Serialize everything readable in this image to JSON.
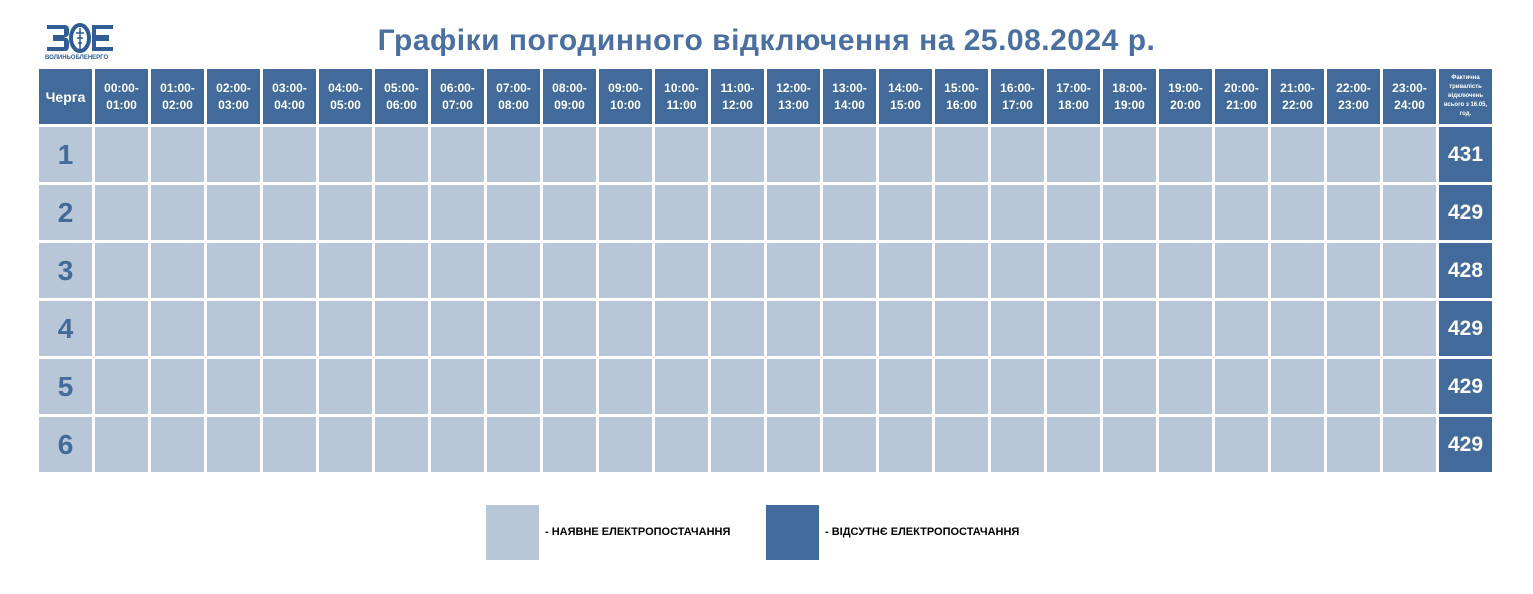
{
  "logo": {
    "text": "ВОЛИНЬОБЛЕНЕРГО"
  },
  "title": "Графіки погодинного відключення на 25.08.2024 р.",
  "table": {
    "queue_header": "Черга",
    "hours": [
      [
        "00:00-",
        "01:00"
      ],
      [
        "01:00-",
        "02:00"
      ],
      [
        "02:00-",
        "03:00"
      ],
      [
        "03:00-",
        "04:00"
      ],
      [
        "04:00-",
        "05:00"
      ],
      [
        "05:00-",
        "06:00"
      ],
      [
        "06:00-",
        "07:00"
      ],
      [
        "07:00-",
        "08:00"
      ],
      [
        "08:00-",
        "09:00"
      ],
      [
        "09:00-",
        "10:00"
      ],
      [
        "10:00-",
        "11:00"
      ],
      [
        "11:00-",
        "12:00"
      ],
      [
        "12:00-",
        "13:00"
      ],
      [
        "13:00-",
        "14:00"
      ],
      [
        "14:00-",
        "15:00"
      ],
      [
        "15:00-",
        "16:00"
      ],
      [
        "16:00-",
        "17:00"
      ],
      [
        "17:00-",
        "18:00"
      ],
      [
        "18:00-",
        "19:00"
      ],
      [
        "19:00-",
        "20:00"
      ],
      [
        "20:00-",
        "21:00"
      ],
      [
        "21:00-",
        "22:00"
      ],
      [
        "22:00-",
        "23:00"
      ],
      [
        "23:00-",
        "24:00"
      ]
    ],
    "total_header": [
      "Фактична",
      "тривалість",
      "відключень",
      "всього з 16.05,",
      "год."
    ],
    "rows": [
      {
        "queue": "1",
        "total": "431",
        "off_hours": []
      },
      {
        "queue": "2",
        "total": "429",
        "off_hours": []
      },
      {
        "queue": "3",
        "total": "428",
        "off_hours": []
      },
      {
        "queue": "4",
        "total": "429",
        "off_hours": []
      },
      {
        "queue": "5",
        "total": "429",
        "off_hours": []
      },
      {
        "queue": "6",
        "total": "429",
        "off_hours": []
      }
    ]
  },
  "legend": {
    "on_label": "- НАЯВНЕ ЕЛЕКТРОПОСТАЧАННЯ",
    "off_label": "- ВІДСУТНЄ ЕЛЕКТРОПОСТАЧАННЯ"
  },
  "colors": {
    "power_on": "#b8c7d7",
    "power_off": "#426a9a",
    "title": "#4a6fa1"
  }
}
